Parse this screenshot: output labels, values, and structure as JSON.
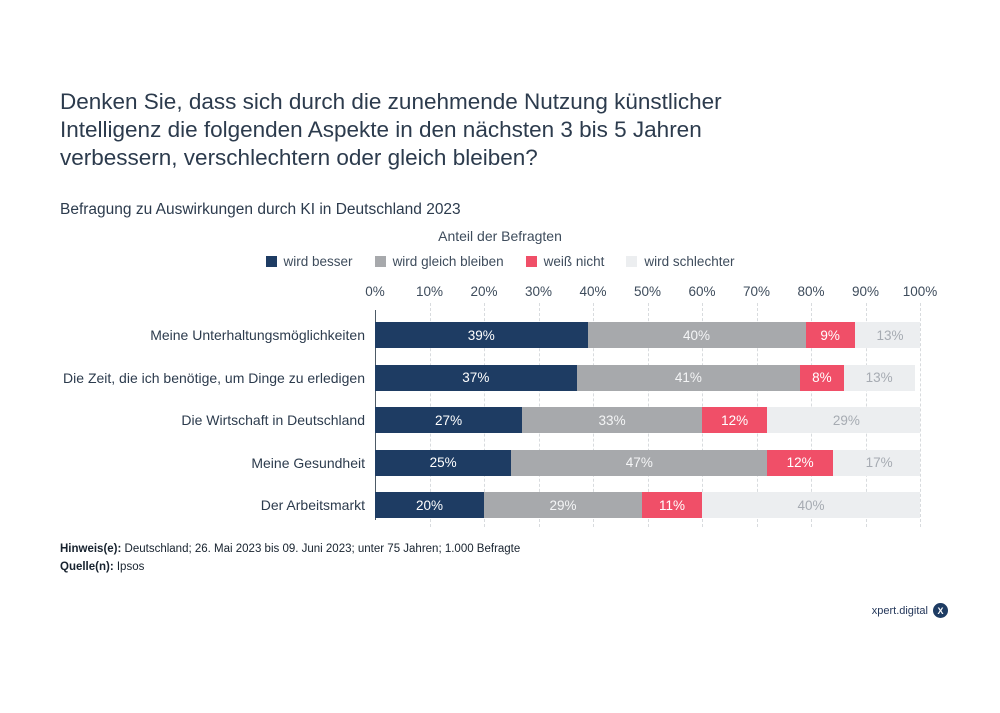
{
  "title": {
    "lines": [
      "Denken Sie, dass sich durch die zunehmende Nutzung künstlicher",
      "Intelligenz die folgenden Aspekte in den nächsten 3 bis 5 Jahren",
      "verbessern, verschlechtern oder gleich bleiben?"
    ]
  },
  "subtitle": "Befragung zu Auswirkungen durch KI in Deutschland 2023",
  "chart_data": {
    "type": "bar",
    "orientation": "horizontal-stacked",
    "title": "Anteil der Befragten",
    "categories": [
      "Meine Unterhaltungsmöglichkeiten",
      "Die Zeit, die ich benötige, um Dinge zu erledigen",
      "Die Wirtschaft in Deutschland",
      "Meine Gesundheit",
      "Der Arbeitsmarkt"
    ],
    "series": [
      {
        "name": "wird besser",
        "color": "#1e3c63",
        "label_color": "#ffffff",
        "values": [
          39,
          37,
          27,
          25,
          20
        ]
      },
      {
        "name": "wird gleich bleiben",
        "color": "#a7a9ac",
        "label_color": "#f4f5f6",
        "values": [
          40,
          41,
          33,
          47,
          29
        ]
      },
      {
        "name": "weiß nicht",
        "color": "#f04f68",
        "label_color": "#ffffff",
        "values": [
          9,
          8,
          12,
          12,
          11
        ]
      },
      {
        "name": "wird schlechter",
        "color": "#eceef0",
        "label_color": "#a6abb2",
        "values": [
          13,
          13,
          29,
          17,
          40
        ]
      }
    ],
    "xlim": [
      0,
      100
    ],
    "x_ticks": [
      "0%",
      "10%",
      "20%",
      "30%",
      "40%",
      "50%",
      "60%",
      "70%",
      "80%",
      "90%",
      "100%"
    ],
    "grid": "dashed-vertical",
    "legend_position": "top"
  },
  "footnotes": {
    "note_label": "Hinweis(e):",
    "note_text": " Deutschland; 26. Mai 2023 bis 09. Juni 2023; unter 75 Jahren; 1.000 Befragte",
    "source_label": "Quelle(n):",
    "source_text": " Ipsos"
  },
  "logo": {
    "text": "xpert.digital",
    "mark": "X"
  }
}
